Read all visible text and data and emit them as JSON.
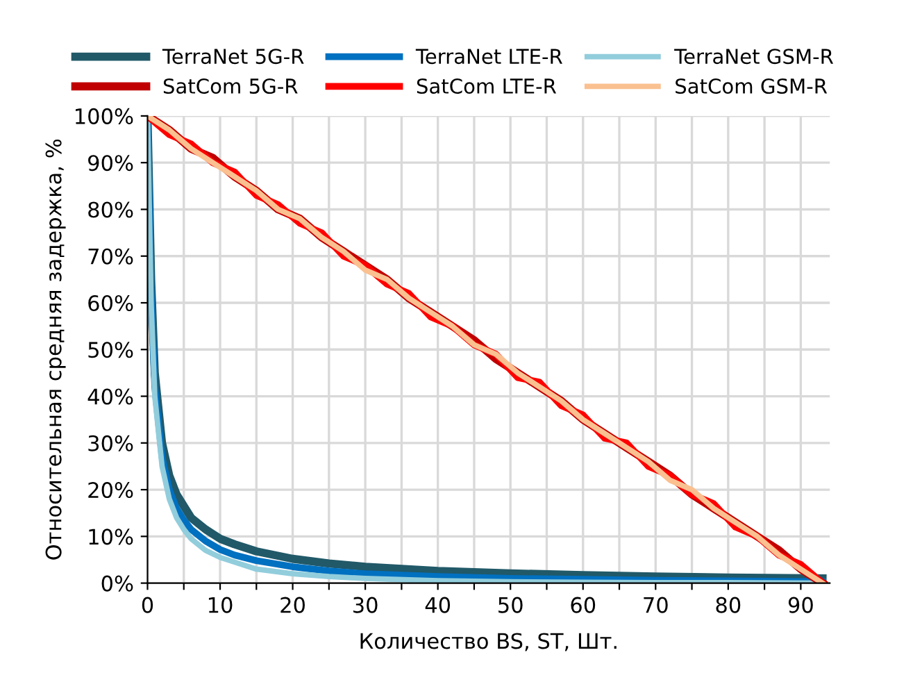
{
  "chart_data": {
    "type": "line",
    "xlabel": "Количество BS, ST, Шт.",
    "ylabel": "Относительная средняя задержка, %",
    "xlim": [
      0,
      94
    ],
    "xticks": [
      0,
      {
        "value": 5,
        "label": null
      },
      10,
      {
        "value": 15,
        "label": null
      },
      20,
      {
        "value": 25,
        "label": null
      },
      30,
      {
        "value": 35,
        "label": null
      },
      40,
      {
        "value": 45,
        "label": null
      },
      50,
      {
        "value": 55,
        "label": null
      },
      60,
      {
        "value": 65,
        "label": null
      },
      70,
      {
        "value": 75,
        "label": null
      },
      80,
      {
        "value": 85,
        "label": null
      },
      90
    ],
    "ylim": [
      0,
      100
    ],
    "yticks": [
      {
        "value": 0,
        "label": "0%"
      },
      {
        "value": 10,
        "label": "10%"
      },
      {
        "value": 20,
        "label": "20%"
      },
      {
        "value": 30,
        "label": "30%"
      },
      {
        "value": 40,
        "label": "40%"
      },
      {
        "value": 50,
        "label": "50%"
      },
      {
        "value": 60,
        "label": "60%"
      },
      {
        "value": 70,
        "label": "70%"
      },
      {
        "value": 80,
        "label": "80%"
      },
      {
        "value": 90,
        "label": "90%"
      },
      {
        "value": 100,
        "label": "100%"
      }
    ],
    "grid": true,
    "legend": "top",
    "marker": "none",
    "line_style": "solid",
    "series": [
      {
        "name": "TerraNet 5G-R",
        "color": "#215968",
        "x": [
          0,
          0.5,
          1,
          2,
          3,
          4,
          5,
          6,
          8,
          10,
          12,
          15,
          20,
          25,
          30,
          40,
          50,
          60,
          70,
          80,
          93
        ],
        "values": [
          100,
          65,
          45,
          30,
          23,
          19,
          16.5,
          14,
          11.5,
          9.5,
          8.3,
          6.8,
          5.2,
          4.2,
          3.5,
          2.6,
          2.1,
          1.7,
          1.4,
          1.2,
          1
        ]
      },
      {
        "name": "TerraNet LTE-R",
        "color": "#0070c0",
        "x": [
          0,
          0.5,
          1,
          2,
          3,
          4,
          5,
          6,
          8,
          10,
          12,
          15,
          20,
          25,
          30,
          40,
          50,
          60,
          70,
          80,
          93
        ],
        "values": [
          100,
          62,
          42,
          27,
          20,
          16,
          13.5,
          11.5,
          9,
          7.2,
          6,
          4.8,
          3.5,
          2.6,
          2,
          1.4,
          1,
          0.8,
          0.6,
          0.5,
          0.3
        ]
      },
      {
        "name": "TerraNet GSM-R",
        "color": "#92cddc",
        "x": [
          0,
          0.5,
          1,
          2,
          3,
          4,
          5,
          6,
          8,
          10,
          12,
          15,
          20,
          25,
          30,
          40,
          50,
          60,
          70,
          80,
          93
        ],
        "values": [
          100,
          60,
          40,
          25,
          18,
          14,
          11.5,
          9.5,
          7,
          5.5,
          4.5,
          3,
          2,
          1.4,
          1,
          0.5,
          0.3,
          0.2,
          0.1,
          0.1,
          0
        ]
      },
      {
        "name": "SatCom 5G-R",
        "color": "#c00000",
        "x": [
          0,
          3,
          6,
          9,
          12,
          15,
          18,
          21,
          24,
          27,
          30,
          33,
          36,
          39,
          42,
          45,
          48,
          51,
          54,
          57,
          60,
          63,
          66,
          69,
          72,
          75,
          78,
          81,
          84,
          87,
          90,
          93
        ],
        "values": [
          100,
          97,
          93,
          91,
          87,
          84,
          80,
          78,
          74,
          71,
          68,
          65,
          61,
          58,
          55,
          52,
          48,
          45,
          42,
          39,
          35,
          32,
          29,
          26,
          23,
          19,
          16,
          13,
          10,
          7,
          3,
          0
        ]
      },
      {
        "name": "SatCom LTE-R",
        "color": "#ff0000",
        "x": [
          0,
          3,
          6,
          9,
          12,
          15,
          18,
          21,
          24,
          27,
          30,
          33,
          36,
          39,
          42,
          45,
          48,
          51,
          54,
          57,
          60,
          63,
          66,
          69,
          72,
          75,
          78,
          81,
          84,
          87,
          90,
          93
        ],
        "values": [
          100,
          96,
          94,
          90,
          88,
          83,
          81,
          77,
          75,
          70,
          68,
          64,
          62,
          57,
          55,
          51,
          49,
          44,
          43,
          38,
          36,
          31,
          30,
          25,
          23,
          19,
          17,
          12,
          10,
          6,
          4,
          0
        ]
      },
      {
        "name": "SatCom GSM-R",
        "color": "#fac090",
        "x": [
          0,
          3,
          6,
          9,
          12,
          15,
          18,
          21,
          24,
          27,
          30,
          33,
          36,
          39,
          42,
          45,
          48,
          51,
          54,
          57,
          60,
          63,
          66,
          69,
          72,
          75,
          78,
          81,
          84,
          87,
          90,
          93
        ],
        "values": [
          100,
          97,
          93,
          90,
          87,
          84,
          80,
          78,
          74,
          71,
          67,
          65,
          61,
          58,
          55,
          51,
          49,
          45,
          42,
          39,
          35,
          32,
          29,
          26,
          22,
          20,
          16,
          13,
          10,
          6,
          3,
          0
        ]
      }
    ]
  }
}
